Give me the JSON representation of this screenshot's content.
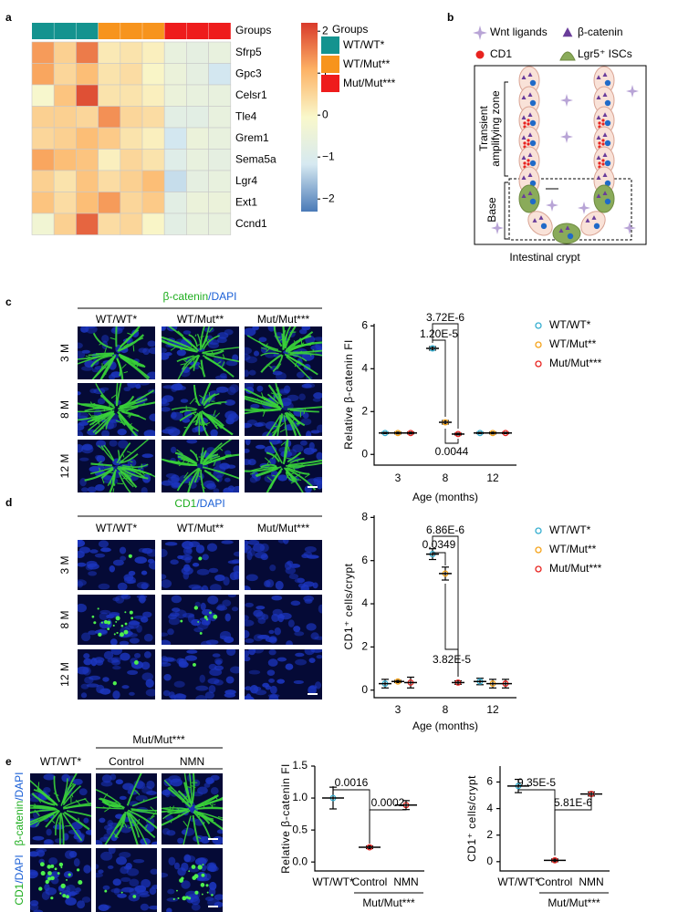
{
  "panel_letters": [
    "a",
    "b",
    "c",
    "d",
    "e"
  ],
  "diagram": {
    "legend": [
      "Wnt ligands",
      "β-catenin",
      "CD1",
      "Lgr5⁺ ISCs"
    ],
    "zones": [
      [
        "Transient",
        "amplifying zone"
      ],
      [
        "Base"
      ]
    ],
    "caption": "Intestinal crypt"
  },
  "images": {
    "stain_colors": [
      "#1fae1f",
      "#1a5fd6"
    ],
    "c": {
      "stain": [
        "β-catenin",
        "/DAPI"
      ],
      "columns": [
        {
          "name": "WT/WT*",
          "color": "#35aed0"
        },
        {
          "name": "WT/Mut**",
          "color": "#f5a31a"
        },
        {
          "name": "Mut/Mut***",
          "color": "#e8231f"
        }
      ],
      "rows": [
        "3 M",
        "8 M",
        "12 M"
      ]
    },
    "d": {
      "stain": [
        "CD1",
        "/DAPI"
      ],
      "columns": [
        {
          "name": "WT/WT*",
          "color": "#35aed0"
        },
        {
          "name": "WT/Mut**",
          "color": "#f5a31a"
        },
        {
          "name": "Mut/Mut***",
          "color": "#e8231f"
        }
      ],
      "rows": [
        "3 M",
        "8 M",
        "12 M"
      ]
    },
    "e": {
      "group": {
        "name": "Mut/Mut***",
        "color": "#e8231f"
      },
      "columns": [
        {
          "name": "WT/WT*",
          "color": "#35aed0"
        },
        {
          "name": "Control",
          "color": "#000000"
        },
        {
          "name": "NMN",
          "color": "#000000"
        }
      ],
      "rows": [
        [
          "β-catenin",
          "/DAPI"
        ],
        [
          "CD1",
          "/DAPI"
        ]
      ]
    }
  },
  "chart_data": [
    {
      "type": "heatmap",
      "group_label": "Groups",
      "legend_title": "Groups",
      "groups": [
        {
          "name": "WT/WT*",
          "color": "#14938f",
          "label_color": "#35aed0",
          "columns": 3
        },
        {
          "name": "WT/Mut**",
          "color": "#f7941d",
          "label_color": "#f5a31a",
          "columns": 3
        },
        {
          "name": "Mut/Mut***",
          "color": "#ee1c1c",
          "label_color": "#e8231f",
          "columns": 3
        }
      ],
      "rows": [
        "Sfrp5",
        "Gpc3",
        "Celsr1",
        "Tle4",
        "Grem1",
        "Sema5a",
        "Lgr4",
        "Ext1",
        "Ccnd1"
      ],
      "values": [
        [
          1.3,
          0.6,
          1.6,
          0.2,
          0.3,
          0.1,
          -0.6,
          -0.7,
          -0.6
        ],
        [
          1.2,
          0.5,
          0.9,
          0.3,
          0.4,
          0.0,
          -0.5,
          -0.7,
          -1.2
        ],
        [
          -0.1,
          0.8,
          2.0,
          0.3,
          0.3,
          0.1,
          -0.5,
          -0.6,
          -0.6
        ],
        [
          0.6,
          0.6,
          0.5,
          1.4,
          0.5,
          0.4,
          -0.8,
          -0.8,
          -0.6
        ],
        [
          0.5,
          0.6,
          0.9,
          0.7,
          0.3,
          0.1,
          -1.2,
          -0.5,
          -0.6
        ],
        [
          1.2,
          0.9,
          0.8,
          0.1,
          0.5,
          0.3,
          -0.9,
          -0.6,
          -0.7
        ],
        [
          0.6,
          0.3,
          0.8,
          0.4,
          0.6,
          0.9,
          -1.3,
          -0.7,
          -0.6
        ],
        [
          0.8,
          0.4,
          0.9,
          1.3,
          0.5,
          0.7,
          -0.8,
          -0.5,
          -0.5
        ],
        [
          -0.3,
          0.6,
          1.8,
          0.4,
          0.5,
          0.0,
          -0.8,
          -0.6,
          -0.6
        ]
      ],
      "colorscale": [
        "#4a7ab7",
        "#d6e9f1",
        "#f9f8cb",
        "#fdb366",
        "#d93a2b"
      ],
      "clim": [
        -2.3,
        2.2
      ],
      "ticks": [
        2,
        1,
        0,
        {
          "value": -1,
          "label": "−1"
        },
        {
          "value": -2,
          "label": "−2"
        }
      ]
    },
    {
      "type": "dot",
      "ylabel": "Relative β-catenin FI",
      "xlabel": "Age (months)",
      "categories": [
        "3",
        "8",
        "12"
      ],
      "series": [
        {
          "name": "WT/WT*",
          "color": "#35aed0",
          "values": [
            1.0,
            4.95,
            1.0
          ],
          "errors": [
            0.03,
            0.08,
            0.03
          ]
        },
        {
          "name": "WT/Mut**",
          "color": "#f5a31a",
          "values": [
            1.0,
            1.5,
            1.0
          ],
          "errors": [
            0.04,
            0.08,
            0.04
          ]
        },
        {
          "name": "Mut/Mut***",
          "color": "#e8231f",
          "values": [
            1.0,
            0.95,
            1.0
          ],
          "errors": [
            0.04,
            0.04,
            0.03
          ]
        }
      ],
      "ylim": [
        -0.5,
        6.1
      ],
      "yticks": [
        0,
        2,
        4,
        6
      ],
      "annotations": [
        "3.72E-6",
        "1.20E-5",
        "0.0044"
      ]
    },
    {
      "type": "dot",
      "ylabel": "CD1⁺ cells/crypt",
      "xlabel": "Age (months)",
      "categories": [
        "3",
        "8",
        "12"
      ],
      "series": [
        {
          "name": "WT/WT*",
          "color": "#35aed0",
          "values": [
            0.3,
            6.3,
            0.4
          ],
          "errors": [
            0.2,
            0.25,
            0.15
          ]
        },
        {
          "name": "WT/Mut**",
          "color": "#f5a31a",
          "values": [
            0.4,
            5.4,
            0.3
          ],
          "errors": [
            0.05,
            0.3,
            0.2
          ]
        },
        {
          "name": "Mut/Mut***",
          "color": "#e8231f",
          "values": [
            0.35,
            0.35,
            0.3
          ],
          "errors": [
            0.25,
            0.08,
            0.2
          ]
        }
      ],
      "ylim": [
        -0.35,
        8.1
      ],
      "yticks": [
        0,
        2,
        4,
        6,
        8
      ],
      "annotations": [
        "6.86E-6",
        "0.0349",
        "3.82E-5"
      ]
    },
    {
      "type": "dot",
      "ylabel": "Relative β-catenin FI",
      "categories": [
        "WT/WT*",
        "Control",
        "NMN"
      ],
      "category_label_colors": [
        "#35aed0",
        "#000000",
        "#000000"
      ],
      "group_label": "Mut/Mut***",
      "group_label_color": "#e8231f",
      "values": [
        1.0,
        0.23,
        0.89
      ],
      "errors": [
        0.17,
        0.02,
        0.07
      ],
      "colors": [
        "#35aed0",
        "#e8231f",
        "#e8231f"
      ],
      "ylim": [
        -0.14,
        1.5
      ],
      "yticks": [
        {
          "value": 0,
          "label": "0.0"
        },
        {
          "value": 0.5,
          "label": "0.5"
        },
        {
          "value": 1,
          "label": "1.0"
        },
        {
          "value": 1.5,
          "label": "1.5"
        }
      ],
      "annotations": [
        "0.0016",
        "0.0002"
      ]
    },
    {
      "type": "dot",
      "ylabel": "CD1⁺ cells/crypt",
      "categories": [
        "WT/WT*",
        "Control",
        "NMN"
      ],
      "category_label_colors": [
        "#35aed0",
        "#000000",
        "#000000"
      ],
      "group_label": "Mut/Mut***",
      "group_label_color": "#e8231f",
      "values": [
        5.7,
        0.1,
        5.1
      ],
      "errors": [
        0.5,
        0.1,
        0.15
      ],
      "colors": [
        "#35aed0",
        "#e8231f",
        "#e8231f"
      ],
      "ylim": [
        -0.7,
        7.2
      ],
      "yticks": [
        0,
        2,
        4,
        6
      ],
      "annotations": [
        "9.35E-5",
        "5.81E-6"
      ]
    }
  ]
}
